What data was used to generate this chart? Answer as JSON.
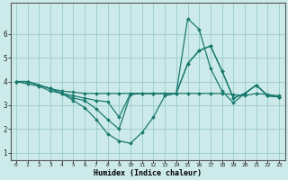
{
  "xlabel": "Humidex (Indice chaleur)",
  "ylabel": "",
  "background_color": "#cdeaea",
  "grid_color": "#9fcfcf",
  "line_color": "#1a7a6e",
  "x_ticks": [
    0,
    1,
    2,
    3,
    4,
    5,
    6,
    7,
    8,
    9,
    10,
    11,
    12,
    13,
    14,
    15,
    16,
    17,
    18,
    19,
    20,
    21,
    22,
    23
  ],
  "y_ticks": [
    1,
    2,
    3,
    4,
    5,
    6
  ],
  "ylim": [
    0.7,
    7.3
  ],
  "xlim": [
    -0.5,
    23.5
  ],
  "series": [
    [
      4.0,
      4.0,
      3.85,
      3.7,
      3.6,
      3.55,
      3.5,
      3.5,
      3.5,
      3.5,
      3.5,
      3.5,
      3.5,
      3.5,
      3.5,
      3.5,
      3.5,
      3.5,
      3.5,
      3.45,
      3.4,
      3.5,
      3.45,
      3.4
    ],
    [
      4.0,
      3.9,
      3.8,
      3.6,
      3.5,
      3.4,
      3.3,
      3.2,
      3.15,
      2.5,
      3.5,
      3.5,
      3.5,
      3.5,
      3.5,
      6.65,
      6.2,
      4.55,
      3.6,
      3.1,
      3.5,
      3.85,
      3.4,
      3.35
    ],
    [
      4.0,
      4.0,
      3.85,
      3.7,
      3.5,
      3.3,
      3.2,
      2.85,
      2.4,
      2.0,
      3.45,
      3.5,
      3.5,
      3.5,
      3.5,
      4.75,
      5.3,
      5.5,
      4.45,
      3.3,
      3.5,
      3.85,
      3.4,
      3.35
    ],
    [
      4.0,
      4.0,
      3.85,
      3.7,
      3.5,
      3.2,
      2.9,
      2.4,
      1.8,
      1.5,
      1.4,
      1.85,
      2.5,
      3.4,
      3.5,
      4.75,
      5.3,
      5.5,
      4.45,
      3.3,
      3.5,
      3.85,
      3.4,
      3.35
    ]
  ]
}
